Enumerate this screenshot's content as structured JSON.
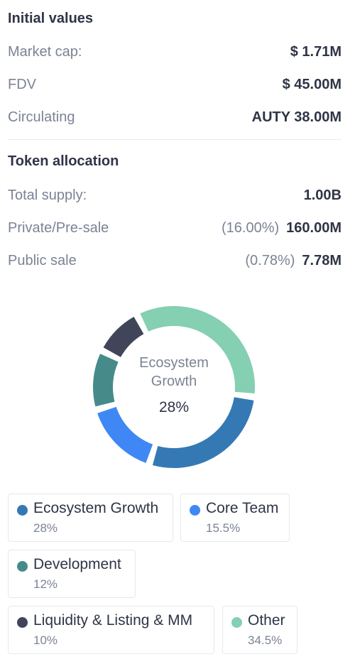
{
  "initial_values": {
    "title": "Initial values",
    "rows": [
      {
        "label": "Market cap:",
        "value": "$ 1.71M"
      },
      {
        "label": "FDV",
        "value": "$ 45.00M"
      },
      {
        "label": "Circulating",
        "value": "AUTY 38.00M"
      }
    ]
  },
  "token_allocation": {
    "title": "Token allocation",
    "rows": [
      {
        "label": "Total supply:",
        "pct": "",
        "value": "1.00B"
      },
      {
        "label": "Private/Pre-sale",
        "pct": "(16.00%)",
        "value": "160.00M"
      },
      {
        "label": "Public sale",
        "pct": "(0.78%)",
        "value": "7.78M"
      }
    ]
  },
  "donut": {
    "center_line1": "Ecosystem",
    "center_line2": "Growth",
    "center_pct": "28%"
  },
  "chart_data": {
    "type": "pie",
    "categories": [
      "Ecosystem Growth",
      "Core Team",
      "Development",
      "Liquidity & Listing & MM",
      "Other"
    ],
    "values": [
      28,
      15.5,
      12,
      10,
      34.5
    ],
    "colors": [
      "#3479b4",
      "#3f87f5",
      "#468b8a",
      "#414559",
      "#85cfb2"
    ]
  },
  "legend": [
    {
      "name": "Ecosystem Growth",
      "pct": "28%",
      "color": "#3479b4"
    },
    {
      "name": "Core Team",
      "pct": "15.5%",
      "color": "#3f87f5"
    },
    {
      "name": "Development",
      "pct": "12%",
      "color": "#468b8a"
    },
    {
      "name": "Liquidity & Listing & MM",
      "pct": "10%",
      "color": "#414559"
    },
    {
      "name": "Other",
      "pct": "34.5%",
      "color": "#85cfb2"
    }
  ]
}
